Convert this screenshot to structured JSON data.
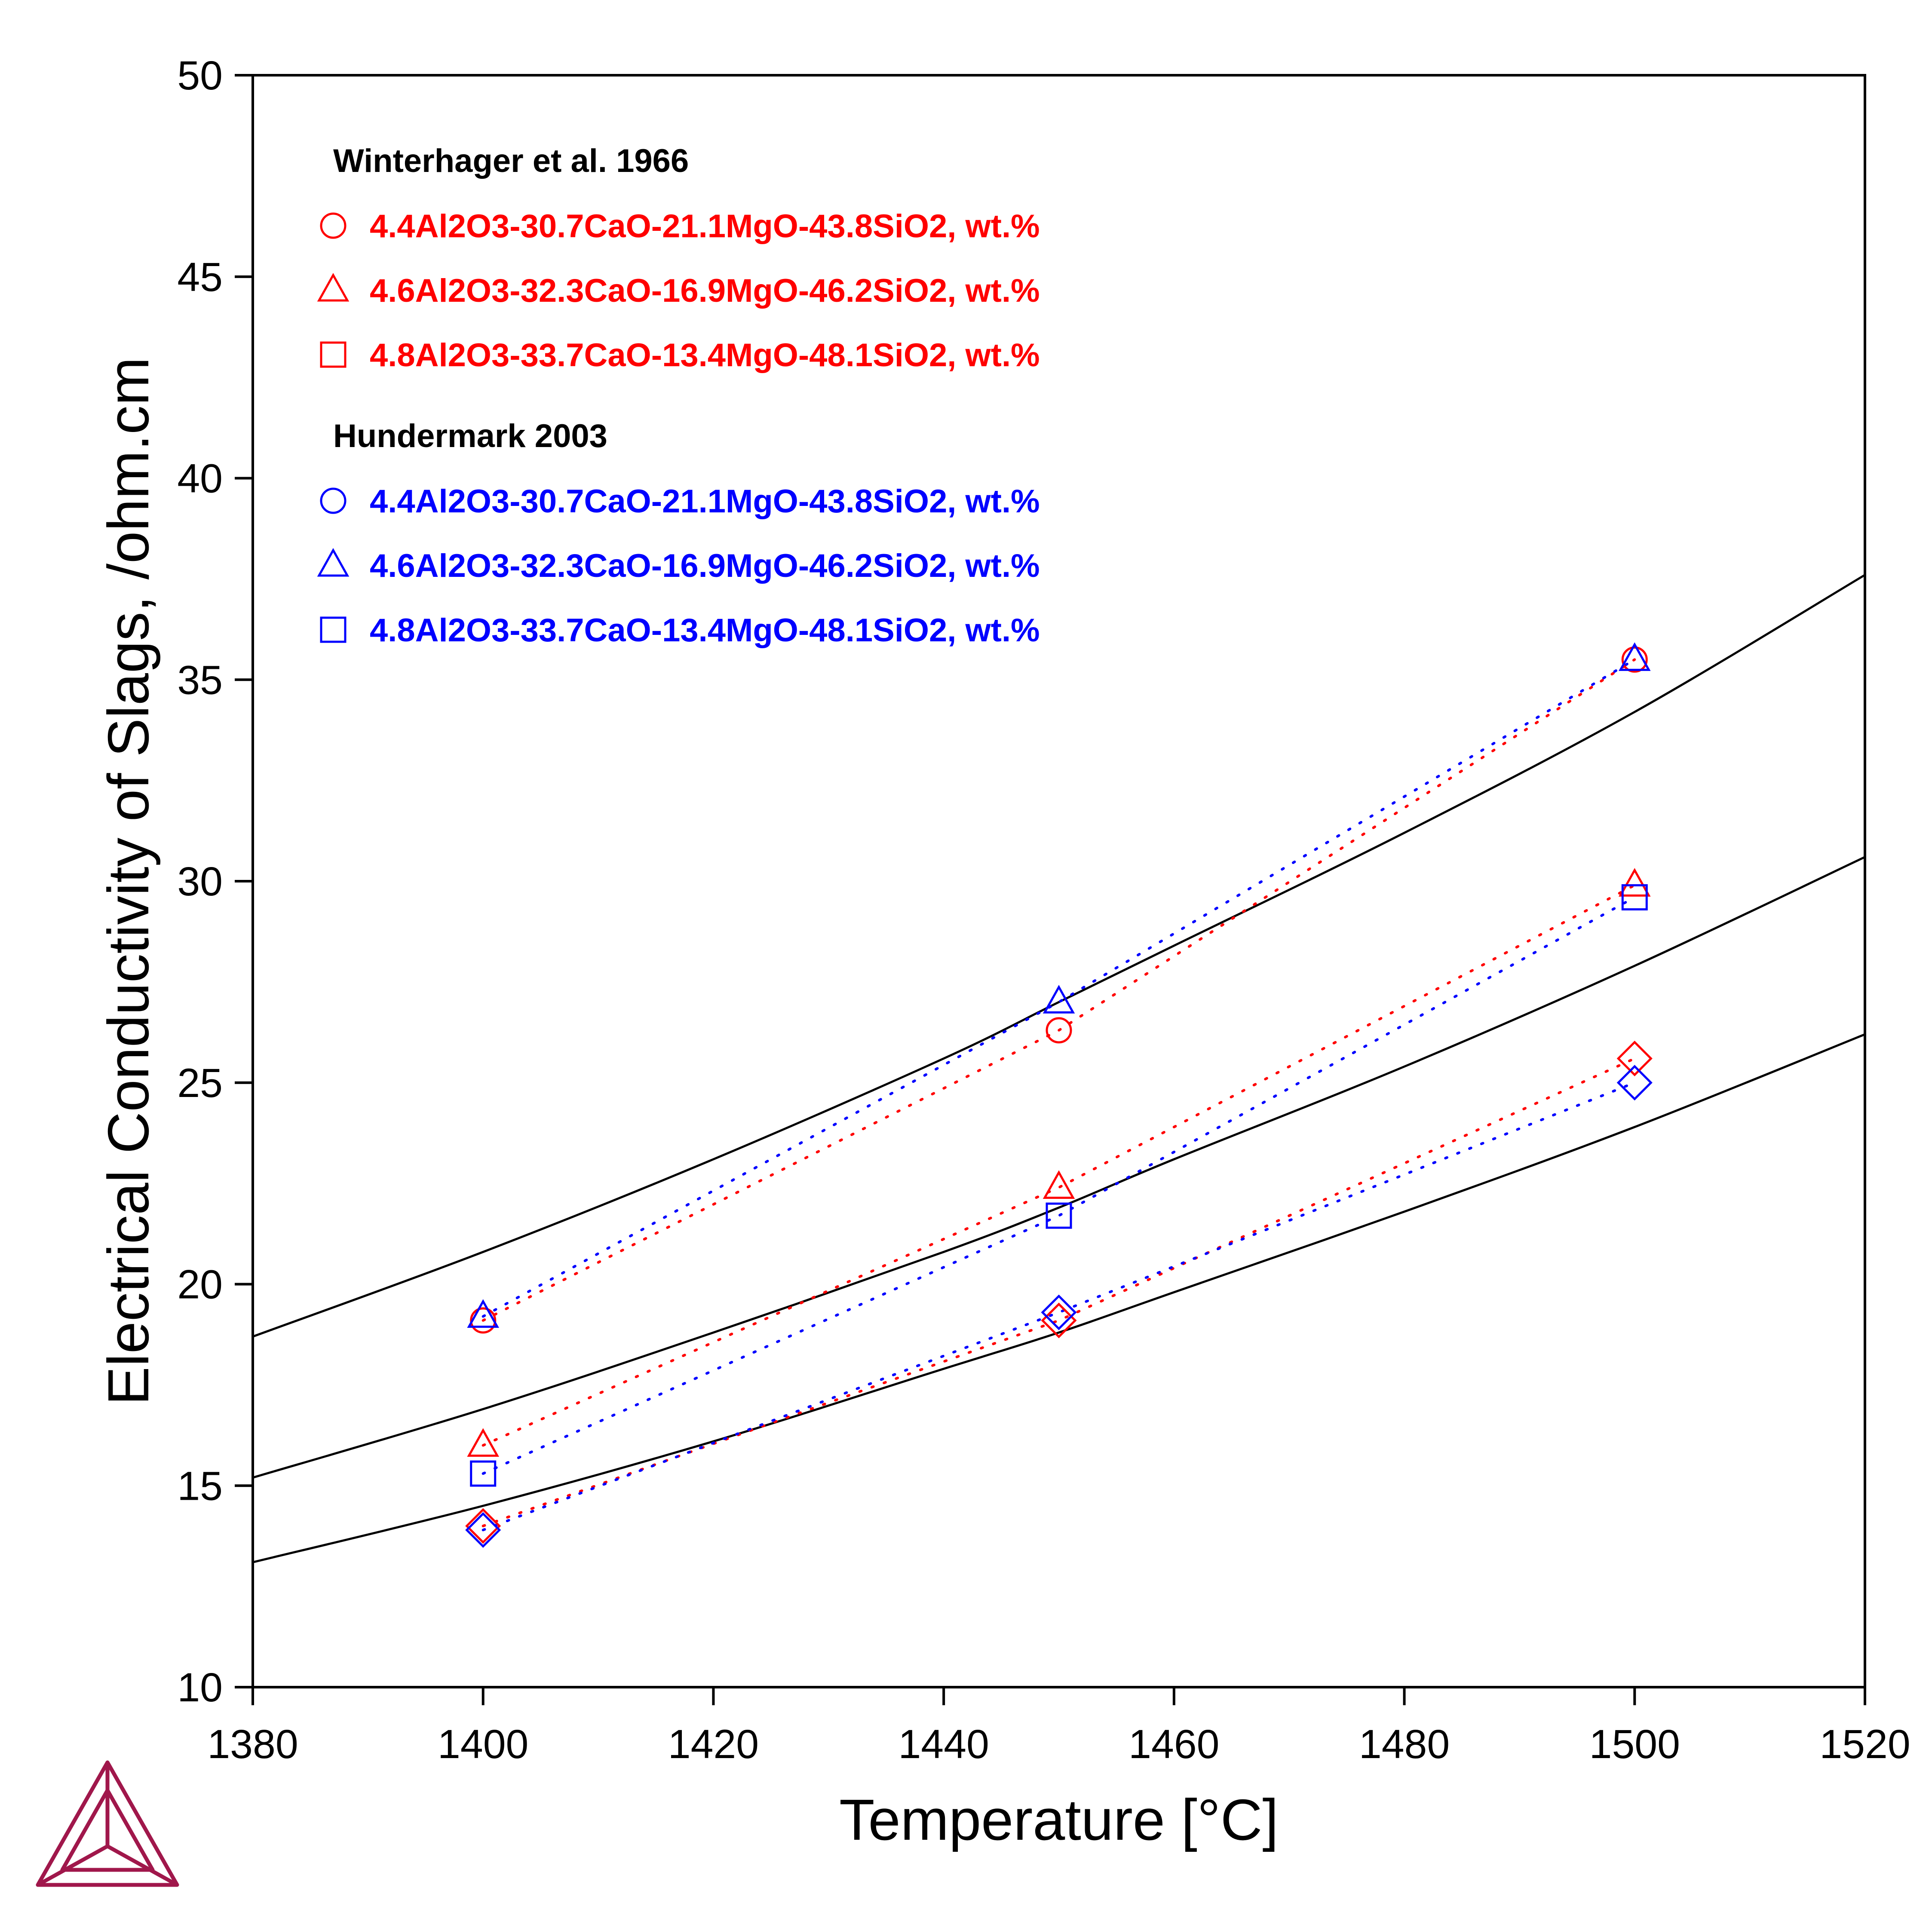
{
  "chart_data": {
    "type": "scatter",
    "title": "",
    "xlabel": "Temperature [°C]",
    "ylabel": "Electrical Conductivity of Slags, /ohm.cm",
    "xlim": [
      1380,
      1520
    ],
    "ylim": [
      10,
      50
    ],
    "xticks": [
      "1380",
      "1400",
      "1420",
      "1440",
      "1460",
      "1480",
      "1500",
      "1520"
    ],
    "yticks": [
      "10",
      "15",
      "20",
      "25",
      "30",
      "35",
      "40",
      "45",
      "50"
    ],
    "grid": false,
    "legend_position": "top-left",
    "legend_groups": [
      {
        "title": "Winterhager et al. 1966",
        "color": "#ff0000",
        "entries": [
          {
            "marker": "circle",
            "label": "4.4Al2O3-30.7CaO-21.1MgO-43.8SiO2, wt.%"
          },
          {
            "marker": "triangle",
            "label": "4.6Al2O3-32.3CaO-16.9MgO-46.2SiO2, wt.%"
          },
          {
            "marker": "square",
            "label": "4.8Al2O3-33.7CaO-13.4MgO-48.1SiO2, wt.%"
          }
        ]
      },
      {
        "title": "Hundermark 2003",
        "color": "#0000ff",
        "entries": [
          {
            "marker": "circle",
            "label": "4.4Al2O3-30.7CaO-21.1MgO-43.8SiO2, wt.%"
          },
          {
            "marker": "triangle",
            "label": "4.6Al2O3-32.3CaO-16.9MgO-46.2SiO2, wt.%"
          },
          {
            "marker": "square",
            "label": "4.8Al2O3-33.7CaO-13.4MgO-48.1SiO2, wt.%"
          }
        ]
      }
    ],
    "calculated_curves": [
      {
        "color": "#000000",
        "x": [
          1380,
          1400,
          1420,
          1440,
          1450,
          1460,
          1480,
          1500,
          1520
        ],
        "y": [
          18.7,
          20.8,
          23.1,
          25.6,
          27.0,
          28.4,
          31.2,
          34.2,
          37.6
        ]
      },
      {
        "color": "#000000",
        "x": [
          1380,
          1400,
          1420,
          1440,
          1450,
          1460,
          1480,
          1500,
          1520
        ],
        "y": [
          15.2,
          16.9,
          18.8,
          20.8,
          21.9,
          23.1,
          25.4,
          27.9,
          30.6
        ]
      },
      {
        "color": "#000000",
        "x": [
          1380,
          1400,
          1420,
          1440,
          1450,
          1460,
          1480,
          1500,
          1520
        ],
        "y": [
          13.1,
          14.5,
          16.1,
          17.9,
          18.8,
          19.8,
          21.8,
          23.9,
          26.2
        ]
      }
    ],
    "experimental_series": [
      {
        "color": "#ff0000",
        "marker": "circle",
        "x": [
          1400,
          1450,
          1500
        ],
        "y": [
          19.1,
          26.3,
          35.5
        ]
      },
      {
        "color": "#0000ff",
        "marker": "triangle",
        "x": [
          1400,
          1450,
          1500
        ],
        "y": [
          19.2,
          27.0,
          35.5
        ]
      },
      {
        "color": "#ff0000",
        "marker": "triangle",
        "x": [
          1400,
          1450,
          1500
        ],
        "y": [
          16.0,
          22.4,
          29.9
        ]
      },
      {
        "color": "#0000ff",
        "marker": "square",
        "x": [
          1400,
          1450,
          1500
        ],
        "y": [
          15.3,
          21.7,
          29.6
        ]
      },
      {
        "color": "#ff0000",
        "marker": "diamond",
        "x": [
          1400,
          1450,
          1500
        ],
        "y": [
          14.0,
          19.1,
          25.6
        ]
      },
      {
        "color": "#0000ff",
        "marker": "diamond",
        "x": [
          1400,
          1450,
          1500
        ],
        "y": [
          13.9,
          19.3,
          25.0
        ]
      }
    ]
  },
  "logo": {
    "name": "thermo-calc-logo-icon",
    "color": "#a0174b"
  }
}
